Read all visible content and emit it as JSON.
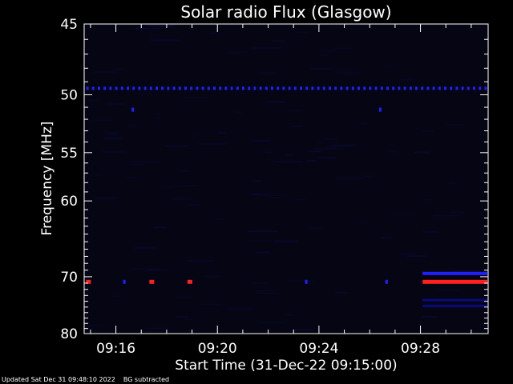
{
  "chart_data": {
    "type": "heatmap",
    "title": "Solar radio Flux (Glasgow)",
    "xlabel": "Start Time (31-Dec-22 09:15:00)",
    "ylabel": "Frequency [MHz]",
    "x_unit": "HH:MM on 31-Dec-22",
    "xlim": [
      "09:14:45",
      "09:30:40"
    ],
    "xticks": [
      "09:16",
      "09:20",
      "09:24",
      "09:28"
    ],
    "ylim": [
      45,
      80
    ],
    "yticks": [
      45,
      50,
      55,
      60,
      70,
      80
    ],
    "y_scale": "reciprocal",
    "background_color": "#050514",
    "colors": {
      "weak": "#0a0a80",
      "moderate": "#2020ff",
      "strong": "#ff2020",
      "axes": "#ffffff",
      "text": "#ffffff"
    },
    "emission_bands": [
      {
        "frequency_mhz": 49.5,
        "intensity": "moderate",
        "pattern": "periodic dots",
        "time_range": [
          "09:14:50",
          "09:30:35"
        ]
      },
      {
        "frequency_mhz": 70.8,
        "intensity": "strong",
        "pattern": "continuous",
        "time_range": [
          "09:28:05",
          "09:30:40"
        ]
      },
      {
        "frequency_mhz": 69.5,
        "intensity": "moderate",
        "pattern": "continuous",
        "time_range": [
          "09:28:05",
          "09:30:40"
        ]
      },
      {
        "frequency_mhz": 73.8,
        "intensity": "weak",
        "pattern": "continuous",
        "time_range": [
          "09:28:05",
          "09:30:40"
        ]
      },
      {
        "frequency_mhz": 74.8,
        "intensity": "weak",
        "pattern": "continuous",
        "time_range": [
          "09:28:05",
          "09:30:40"
        ]
      }
    ],
    "spikes": [
      {
        "time": "09:14:55",
        "frequency_mhz": 70.8,
        "intensity": "strong"
      },
      {
        "time": "09:16:20",
        "frequency_mhz": 70.8,
        "intensity": "moderate"
      },
      {
        "time": "09:17:25",
        "frequency_mhz": 70.8,
        "intensity": "strong"
      },
      {
        "time": "09:18:55",
        "frequency_mhz": 70.8,
        "intensity": "strong"
      },
      {
        "time": "09:23:30",
        "frequency_mhz": 70.8,
        "intensity": "moderate"
      },
      {
        "time": "09:26:40",
        "frequency_mhz": 70.8,
        "intensity": "moderate"
      },
      {
        "time": "09:16:40",
        "frequency_mhz": 51.2,
        "intensity": "moderate"
      },
      {
        "time": "09:26:25",
        "frequency_mhz": 51.2,
        "intensity": "moderate"
      }
    ]
  },
  "footer": {
    "updated": "Updated Sat Dec 31 09:48:10 2022",
    "note": "BG subtracted"
  }
}
